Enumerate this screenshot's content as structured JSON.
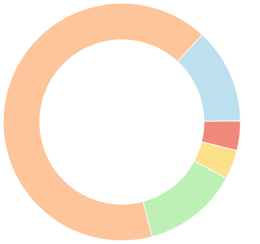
{
  "chart_data": {
    "type": "donut",
    "values": [
      13,
      4,
      4,
      13,
      66
    ],
    "colors": [
      "#bde0ee",
      "#ef8a7a",
      "#fde08c",
      "#bdf0b5",
      "#fec59a"
    ]
  }
}
